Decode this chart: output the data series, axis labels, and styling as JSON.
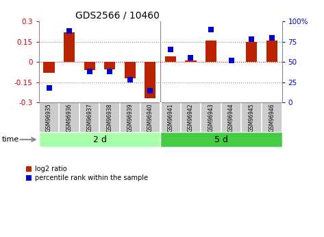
{
  "title": "GDS2566 / 10460",
  "samples": [
    "GSM96935",
    "GSM96936",
    "GSM96937",
    "GSM96938",
    "GSM96939",
    "GSM96940",
    "GSM96941",
    "GSM96942",
    "GSM96943",
    "GSM96944",
    "GSM96945",
    "GSM96946"
  ],
  "log2_ratio": [
    -0.08,
    0.22,
    -0.06,
    -0.055,
    -0.12,
    -0.27,
    0.04,
    0.01,
    0.16,
    0.002,
    0.15,
    0.16
  ],
  "pct_rank": [
    18,
    88,
    38,
    38,
    28,
    15,
    65,
    55,
    90,
    52,
    78,
    80
  ],
  "group1_label": "2 d",
  "group2_label": "5 d",
  "group1_count": 6,
  "group2_count": 6,
  "ylim": [
    -0.3,
    0.3
  ],
  "yticks_left": [
    -0.3,
    -0.15,
    0.0,
    0.15,
    0.3
  ],
  "ytick_labels_left": [
    "-0.3",
    "-0.15",
    "0",
    "0.15",
    "0.3"
  ],
  "ytick_labels_right": [
    "0",
    "25",
    "50",
    "75",
    "100%"
  ],
  "bar_color": "#bb2200",
  "dot_color": "#0000cc",
  "bg_color": "#ffffff",
  "plot_bg": "#ffffff",
  "sample_box_color": "#cccccc",
  "sample_box_edge": "#aaaaaa",
  "group1_bg": "#aaffaa",
  "group2_bg": "#44cc44",
  "tick_color_left": "#cc0000",
  "tick_color_right": "#0000cc",
  "dotted_color": "#888888",
  "zero_line_color": "#cc0000",
  "legend_bar_label": "log2 ratio",
  "legend_dot_label": "percentile rank within the sample",
  "time_label": "time",
  "bar_width": 0.55,
  "dot_size": 40,
  "spine_color": "#888888"
}
